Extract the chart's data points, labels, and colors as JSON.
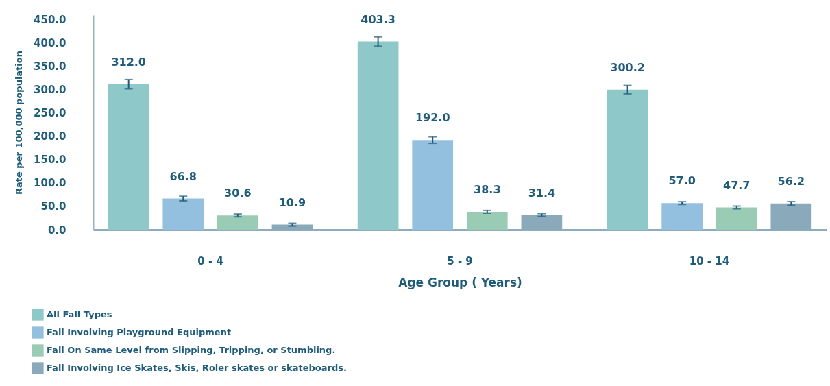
{
  "chart_data": {
    "type": "bar",
    "xlabel": "Age Group ( Years)",
    "ylabel": "Rate per 100,000 population",
    "categories": [
      "0 - 4",
      "5 - 9",
      "10 - 14"
    ],
    "series": [
      {
        "name": "All Fall Types",
        "color": "#8ec8c8",
        "values": [
          312.0,
          403.3,
          300.2
        ],
        "value_labels": [
          "312.0",
          "403.3",
          "300.2"
        ],
        "errors": [
          10,
          10,
          9
        ]
      },
      {
        "name": "Fall Involving Playground Equipment",
        "color": "#94c0e0",
        "values": [
          66.8,
          192.0,
          57.0
        ],
        "value_labels": [
          "66.8",
          "192.0",
          "57.0"
        ],
        "errors": [
          5,
          7,
          3
        ]
      },
      {
        "name": "Fall On Same Level from Slipping, Tripping, or Stumbling.",
        "color": "#9acbb4",
        "values": [
          30.6,
          38.3,
          47.7
        ],
        "value_labels": [
          "30.6",
          "38.3",
          "47.7"
        ],
        "errors": [
          3,
          3,
          3
        ]
      },
      {
        "name": "Fall Involving Ice Skates, Skis, Roler skates or skateboards.",
        "color": "#8aaabb",
        "values": [
          10.9,
          31.4,
          56.2
        ],
        "value_labels": [
          "10.9",
          "31.4",
          "56.2"
        ],
        "errors": [
          3,
          3,
          4
        ]
      }
    ],
    "ylim": [
      0,
      460
    ],
    "yticks": [
      {
        "value": 0,
        "label": "0.0"
      },
      {
        "value": 50,
        "label": "50.0"
      },
      {
        "value": 100,
        "label": "100.0"
      },
      {
        "value": 150,
        "label": "150.0"
      },
      {
        "value": 200,
        "label": "200.0"
      },
      {
        "value": 250,
        "label": "250.0"
      },
      {
        "value": 300,
        "label": "300.0"
      },
      {
        "value": 350,
        "label": "350.0"
      },
      {
        "value": 400,
        "label": "400.0"
      },
      {
        "value": 450,
        "label": "450.0"
      }
    ],
    "grid": false,
    "legend": "bottom left"
  }
}
